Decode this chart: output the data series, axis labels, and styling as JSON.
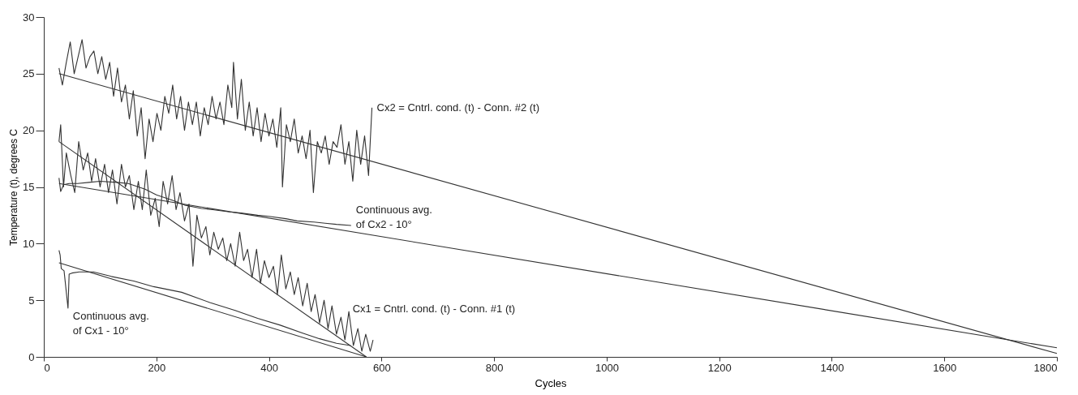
{
  "chart_data": {
    "type": "line",
    "xlabel": "Cycles",
    "ylabel": "Temperature (t), degrees C",
    "xlim": [
      0,
      1800
    ],
    "xticks": [
      0,
      200,
      400,
      600,
      800,
      1000,
      1200,
      1400,
      1600,
      1800
    ],
    "ylim": [
      0,
      30
    ],
    "yticks": [
      0,
      5,
      10,
      15,
      20,
      25,
      30
    ],
    "grid": false,
    "legend": false,
    "marker": "none",
    "line_style": "solid",
    "series": [
      {
        "color": "#333333",
        "x": [
          27,
          33,
          40,
          47,
          54,
          61,
          68,
          75,
          82,
          89,
          96,
          103,
          110,
          117,
          124,
          131,
          138,
          145,
          152,
          159,
          166,
          173,
          180,
          187,
          194,
          201,
          208,
          215,
          222,
          229,
          236,
          243,
          250,
          257,
          264,
          271,
          278,
          285,
          292,
          299,
          306,
          313,
          320,
          327,
          334,
          337,
          344,
          351,
          358,
          365,
          372,
          379,
          386,
          393,
          400,
          407,
          414,
          421,
          424,
          431,
          438,
          445,
          452,
          459,
          466,
          473,
          479,
          486,
          493,
          500,
          507,
          514,
          521,
          528,
          535,
          542,
          549,
          556,
          563,
          570,
          577,
          583
        ],
        "values": [
          25.5,
          24,
          26,
          27.8,
          25,
          26.5,
          28,
          25.5,
          26.5,
          27,
          25,
          26.5,
          24.5,
          26,
          23,
          25.5,
          22.5,
          24,
          21,
          23.5,
          19.5,
          22,
          17.5,
          21,
          19,
          21.5,
          20,
          23,
          21.5,
          24,
          21,
          23,
          20,
          22.5,
          20.5,
          22.5,
          19.5,
          22,
          20.5,
          23,
          21,
          22.5,
          20.5,
          24,
          22,
          26,
          21,
          24.5,
          20,
          22.5,
          19.5,
          22,
          19,
          21.5,
          19.5,
          21,
          18.5,
          22,
          15,
          20.5,
          19,
          21,
          18,
          19.5,
          17.5,
          20,
          14.5,
          19,
          18,
          19.5,
          17,
          19,
          18.5,
          20.5,
          17,
          19,
          15.5,
          20,
          17,
          19.5,
          16,
          22
        ]
      },
      {
        "color": "#333333",
        "x": [
          27,
          1800
        ],
        "values": [
          25,
          0.3
        ]
      },
      {
        "color": "#333333",
        "x": [
          27,
          30,
          35,
          40,
          48,
          55,
          62,
          70,
          78,
          85,
          92,
          100,
          108,
          115,
          122,
          130,
          138,
          145,
          152,
          160,
          168,
          175,
          182,
          190,
          198,
          205,
          212,
          220,
          228,
          235,
          242,
          250,
          258,
          265,
          272,
          280,
          288,
          295,
          302,
          310,
          318,
          325,
          332,
          340,
          348,
          355,
          362,
          370,
          378,
          385,
          392,
          400,
          408,
          415,
          422,
          430,
          438,
          445,
          452,
          460,
          468,
          475,
          482,
          490,
          498,
          505,
          512,
          520,
          528,
          535,
          542,
          550,
          558,
          565,
          572,
          580,
          585
        ],
        "values": [
          19,
          20.5,
          15,
          18,
          16,
          14.5,
          19,
          16.5,
          18,
          15.5,
          17.5,
          15,
          17,
          14.5,
          16.5,
          13.5,
          17,
          15,
          16,
          13,
          15.5,
          13,
          16.5,
          12.5,
          14,
          11.5,
          15.5,
          13.5,
          16,
          13,
          14.5,
          12,
          13.5,
          8,
          12.5,
          10.5,
          11.5,
          9,
          11,
          9.5,
          10.5,
          8.5,
          10,
          8,
          11,
          8.5,
          9.5,
          7,
          9.5,
          6.5,
          8.5,
          7,
          8,
          5.5,
          9,
          6,
          7.5,
          5.5,
          7,
          4.5,
          6.5,
          4,
          5.5,
          3,
          5,
          2.5,
          4.5,
          2,
          3.5,
          1.5,
          4,
          1,
          2.5,
          0.5,
          2,
          0.5,
          1.5
        ]
      },
      {
        "color": "#333333",
        "x": [
          27,
          573
        ],
        "values": [
          19,
          0
        ]
      },
      {
        "color": "#333333",
        "x": [
          27,
          30,
          35,
          45,
          60,
          80,
          100,
          130,
          150,
          180,
          200,
          230,
          250,
          280,
          300,
          330,
          350,
          380,
          400,
          430,
          450,
          480,
          500,
          520,
          546
        ],
        "values": [
          15.8,
          14.6,
          15.2,
          15.3,
          15.3,
          15.4,
          15.5,
          15.4,
          15.3,
          14.8,
          14.3,
          13.8,
          13.4,
          13.1,
          13,
          12.8,
          12.7,
          12.5,
          12.4,
          12.2,
          12,
          11.9,
          11.8,
          11.7,
          11.6
        ]
      },
      {
        "color": "#333333",
        "x": [
          27,
          1800
        ],
        "values": [
          15.3,
          0.8
        ]
      },
      {
        "color": "#333333",
        "x": [
          27,
          29,
          31,
          36,
          43,
          45,
          50,
          63,
          88,
          120,
          160,
          195,
          245,
          295,
          340,
          380,
          420,
          460,
          490,
          520,
          545
        ],
        "values": [
          9.4,
          9,
          7.8,
          7.6,
          4.3,
          7.3,
          7.4,
          7.5,
          7.5,
          7.1,
          6.7,
          6.2,
          5.7,
          4.8,
          4.1,
          3.4,
          2.8,
          2.1,
          1.6,
          1.2,
          1
        ]
      },
      {
        "color": "#333333",
        "x": [
          27,
          573
        ],
        "values": [
          8.3,
          0
        ]
      }
    ],
    "annotations": [
      {
        "text": "Cx2 = Cntrl. cond. (t) - Conn. #2 (t)",
        "x": 583,
        "y": 22
      },
      {
        "text": "Continuous avg.\nof Cx2 - 10°",
        "x": 546,
        "y": 11.6
      },
      {
        "text": "Cx1 = Cntrl. cond. (t) - Conn. #1 (t)",
        "x": 540,
        "y": 4.2
      },
      {
        "text": "Continuous avg.\nof Cx1 - 10°",
        "x": 43,
        "y": 4.3
      }
    ]
  }
}
